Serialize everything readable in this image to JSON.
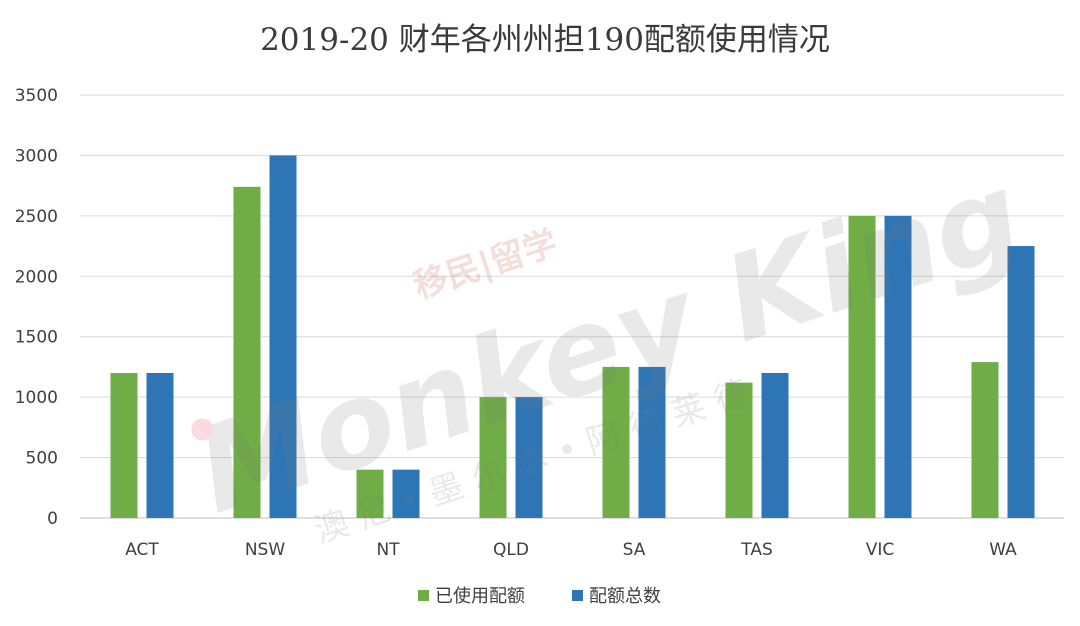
{
  "chart_data": {
    "type": "bar",
    "title": "2019-20 财年各州州担190配额使用情况",
    "categories": [
      "ACT",
      "NSW",
      "NT",
      "QLD",
      "SA",
      "TAS",
      "VIC",
      "WA"
    ],
    "series": [
      {
        "name": "已使用配额",
        "color": "#70ad47",
        "values": [
          1200,
          2740,
          400,
          1000,
          1250,
          1120,
          2500,
          1290
        ]
      },
      {
        "name": "配额总数",
        "color": "#2e75b6",
        "values": [
          1200,
          3000,
          400,
          1000,
          1250,
          1200,
          2500,
          2250
        ]
      }
    ],
    "ylim": [
      0,
      3500
    ],
    "yticks": [
      0,
      500,
      1000,
      1500,
      2000,
      2500,
      3000,
      3500
    ],
    "grid": true,
    "legend": "bottom"
  },
  "watermark": {
    "brand": "Monkey King",
    "line1": "移民|留学",
    "line2": "澳 尼 • 墨 尔 本 • 阿 德 莱 德"
  }
}
